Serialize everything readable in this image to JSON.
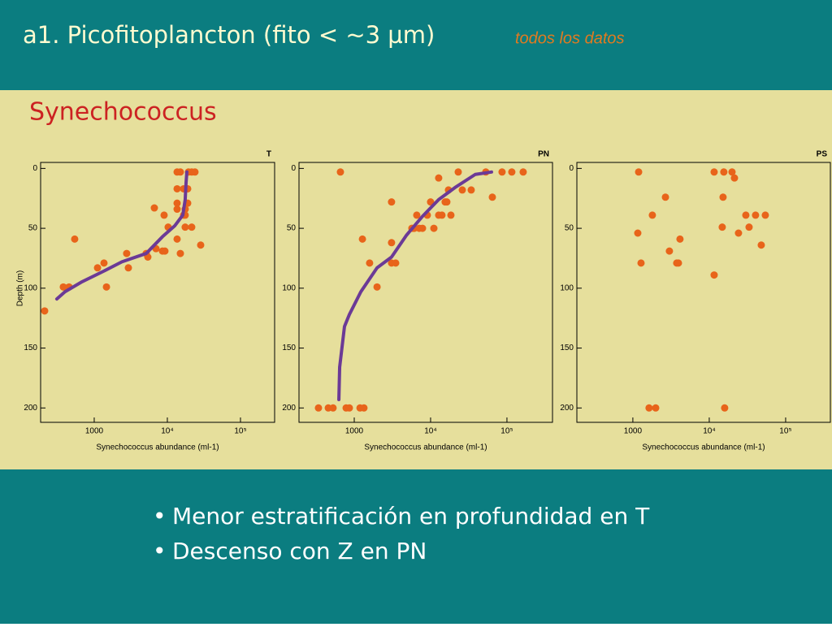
{
  "slide": {
    "title": "a1. Picofitoplancton (fito < ~3 µm)",
    "subtitle": "todos los datos",
    "section": "Synechococcus",
    "bullets": [
      "Menor estratificación en profundidad en T",
      "Descenso con Z en PN"
    ]
  },
  "chart_data": [
    {
      "type": "scatter",
      "title": "T",
      "xlabel": "Synechococcus abundance (ml-1)",
      "ylabel": "Depth (m)",
      "xscale": "log",
      "xlim": [
        185,
        293000
      ],
      "ylim": [
        212,
        -5
      ],
      "xticks": [
        1000,
        {
          "value": 10000,
          "label": "10⁴"
        },
        {
          "value": 100000,
          "label": "10⁵"
        }
      ],
      "yticks": [
        0,
        50,
        100,
        150,
        200
      ],
      "series": [
        {
          "mode": "markers",
          "color": "#e8641a",
          "x": [
            210,
            541,
            378,
            453,
            1360,
            1110,
            1470,
            2780,
            2930,
            5140,
            5410,
            6640,
            6990,
            8580,
            9260,
            9030,
            10260,
            13600,
            15060,
            19450,
            21540,
            23850,
            13600,
            16680,
            18970,
            13600,
            18970,
            13600,
            17540,
            16680,
            17540,
            21540,
            17540,
            13600,
            15060,
            28560
          ],
          "values": [
            119,
            59,
            99,
            99,
            79,
            83,
            99,
            71,
            83,
            71,
            74,
            33,
            67,
            69,
            69,
            39,
            49,
            3,
            3,
            3,
            3,
            3,
            17,
            17,
            17,
            29,
            29,
            34,
            34,
            39,
            39,
            49,
            49,
            59,
            71,
            64
          ]
        },
        {
          "mode": "line",
          "color": "#6b3a96",
          "x": [
            308,
            398,
            664,
            1430,
            2390,
            5140,
            8580,
            12590,
            16260,
            17540,
            18020,
            18480
          ],
          "values": [
            109,
            103,
            95,
            85,
            78,
            71,
            57,
            48,
            39,
            26,
            12,
            3
          ]
        }
      ]
    },
    {
      "type": "scatter",
      "title": "PN",
      "xlabel": "Synechococcus abundance (ml-1)",
      "xscale": "log",
      "xlim": [
        189,
        395000
      ],
      "ylim": [
        212,
        -5
      ],
      "xticks": [
        1000,
        {
          "value": 10000,
          "label": "10⁴"
        },
        {
          "value": 100000,
          "label": "10⁵"
        }
      ],
      "yticks": [
        0,
        50,
        100,
        150,
        200
      ],
      "series": [
        {
          "mode": "markers",
          "color": "#e8641a",
          "x": [
            659,
            340,
            457,
            528,
            783,
            863,
            1190,
            1340,
            1280,
            1590,
            1990,
            3080,
            3490,
            3080,
            3080,
            5690,
            6120,
            7100,
            7830,
            6590,
            9060,
            10000,
            11040,
            12760,
            12760,
            14090,
            15520,
            16320,
            17140,
            18450,
            23010,
            26000,
            34040,
            52860,
            64400,
            86300,
            115800,
            163200
          ],
          "values": [
            3,
            200,
            200,
            200,
            200,
            200,
            200,
            200,
            59,
            79,
            99,
            79,
            79,
            62,
            28,
            50,
            50,
            50,
            50,
            39,
            39,
            28,
            50,
            8,
            39,
            39,
            28,
            28,
            18,
            39,
            3,
            18,
            18,
            3,
            24,
            3,
            3,
            3
          ]
        },
        {
          "mode": "line",
          "color": "#6b3a96",
          "x": [
            629,
            644,
            745,
            863,
            1220,
            1990,
            3080,
            4800,
            7830,
            12760,
            20840,
            38460,
            62800
          ],
          "values": [
            193,
            166,
            132,
            122,
            103,
            83,
            74,
            56,
            40,
            26,
            16,
            5,
            3
          ]
        }
      ]
    },
    {
      "type": "scatter",
      "title": "PS",
      "xlabel": "Synechococcus abundance (ml-1)",
      "xscale": "log",
      "xlim": [
        185,
        385000
      ],
      "ylim": [
        212,
        -5
      ],
      "xticks": [
        1000,
        {
          "value": 10000,
          "label": "10⁴"
        },
        {
          "value": 100000,
          "label": "10⁵"
        }
      ],
      "yticks": [
        0,
        50,
        100,
        150,
        200
      ],
      "series": [
        {
          "mode": "markers",
          "color": "#e8641a",
          "x": [
            1190,
            2670,
            1800,
            1160,
            1280,
            3010,
            4140,
            3750,
            3950,
            1630,
            1990,
            11590,
            11590,
            15520,
            19870,
            21380,
            15160,
            14790,
            15910,
            24150,
            30120,
            33220,
            40360,
            54200,
            47960
          ],
          "values": [
            3,
            24,
            39,
            54,
            79,
            69,
            59,
            79,
            79,
            200,
            200,
            89,
            3,
            3,
            3,
            8,
            24,
            49,
            200,
            54,
            39,
            49,
            39,
            39,
            64
          ]
        }
      ]
    }
  ]
}
